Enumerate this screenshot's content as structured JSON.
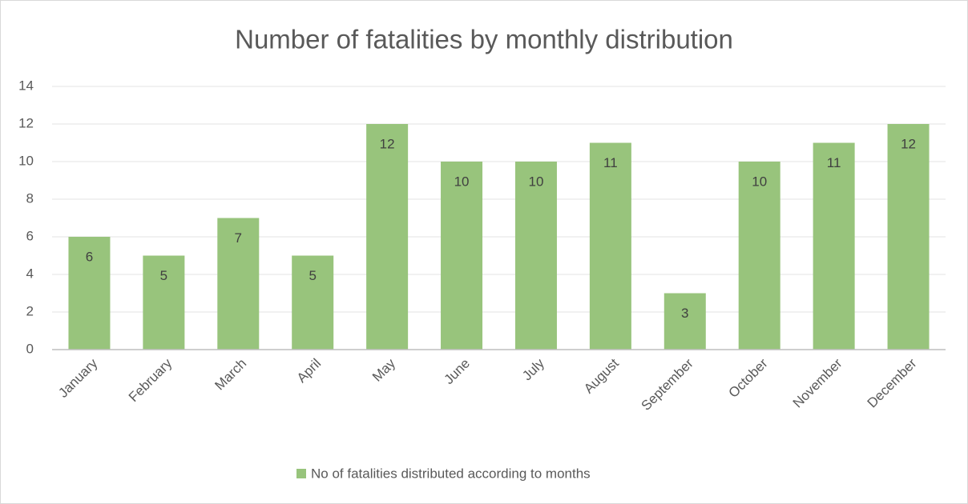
{
  "chart_data": {
    "type": "bar",
    "title": "Number of fatalities by monthly distribution",
    "categories": [
      "January",
      "February",
      "March",
      "April",
      "May",
      "June",
      "July",
      "August",
      "September",
      "October",
      "November",
      "December"
    ],
    "series": [
      {
        "name": "No of fatalities distributed according to months",
        "color": "#98c47c",
        "values": [
          6,
          5,
          7,
          5,
          12,
          10,
          10,
          11,
          3,
          10,
          11,
          12
        ]
      }
    ],
    "ylim": [
      0,
      14
    ],
    "yticks": [
      0,
      2,
      4,
      6,
      8,
      10,
      12,
      14
    ],
    "grid": true,
    "legend": "bottom"
  }
}
